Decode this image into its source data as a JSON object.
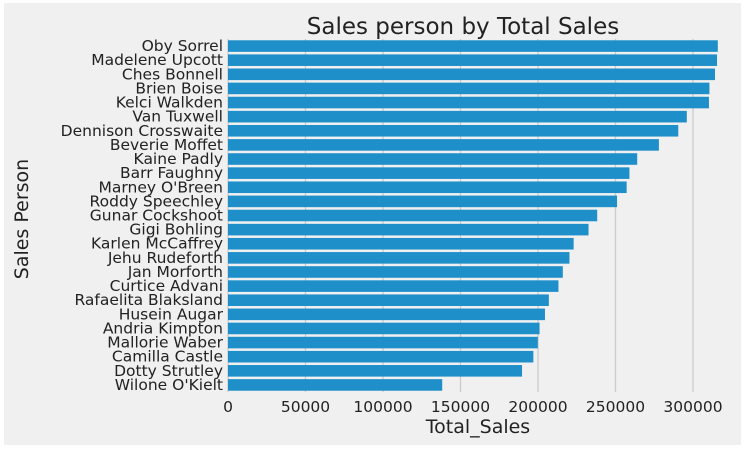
{
  "chart_data": {
    "type": "bar",
    "orientation": "horizontal",
    "title": "Sales person by Total Sales",
    "xlabel": "Total_Sales",
    "ylabel": "Sales Person",
    "xlim": [
      0,
      320000
    ],
    "xticks": [
      0,
      50000,
      100000,
      150000,
      200000,
      250000,
      300000
    ],
    "xtick_labels": [
      "0",
      "50000",
      "100000",
      "150000",
      "200000",
      "250000",
      "300000"
    ],
    "grid": "vertical",
    "bar_color": "#1f8fc9",
    "background_color": "#f0f0f0",
    "categories": [
      "Oby Sorrel",
      "Madelene Upcott",
      "Ches Bonnell",
      "Brien Boise",
      "Kelci Walkden",
      "Van Tuxwell",
      "Dennison Crosswaite",
      "Beverie Moffet",
      "Kaine Padly",
      "Barr Faughny",
      "Marney O'Breen",
      "Roddy Speechley",
      "Gunar Cockshoot",
      "Gigi Bohling",
      "Karlen McCaffrey",
      "Jehu Rudeforth",
      "Jan Morforth",
      "Curtice Advani",
      "Rafaelita Blaksland",
      "Husein Augar",
      "Andria Kimpton",
      "Mallorie Waber",
      "Camilla Castle",
      "Dotty Strutley",
      "Wilone O'Kielt"
    ],
    "values": [
      316000,
      315500,
      314200,
      310600,
      310300,
      296000,
      290500,
      278000,
      264000,
      259000,
      257200,
      251000,
      238200,
      232600,
      223000,
      220300,
      216000,
      213200,
      207000,
      204500,
      201000,
      199900,
      197000,
      189700,
      138200
    ]
  }
}
